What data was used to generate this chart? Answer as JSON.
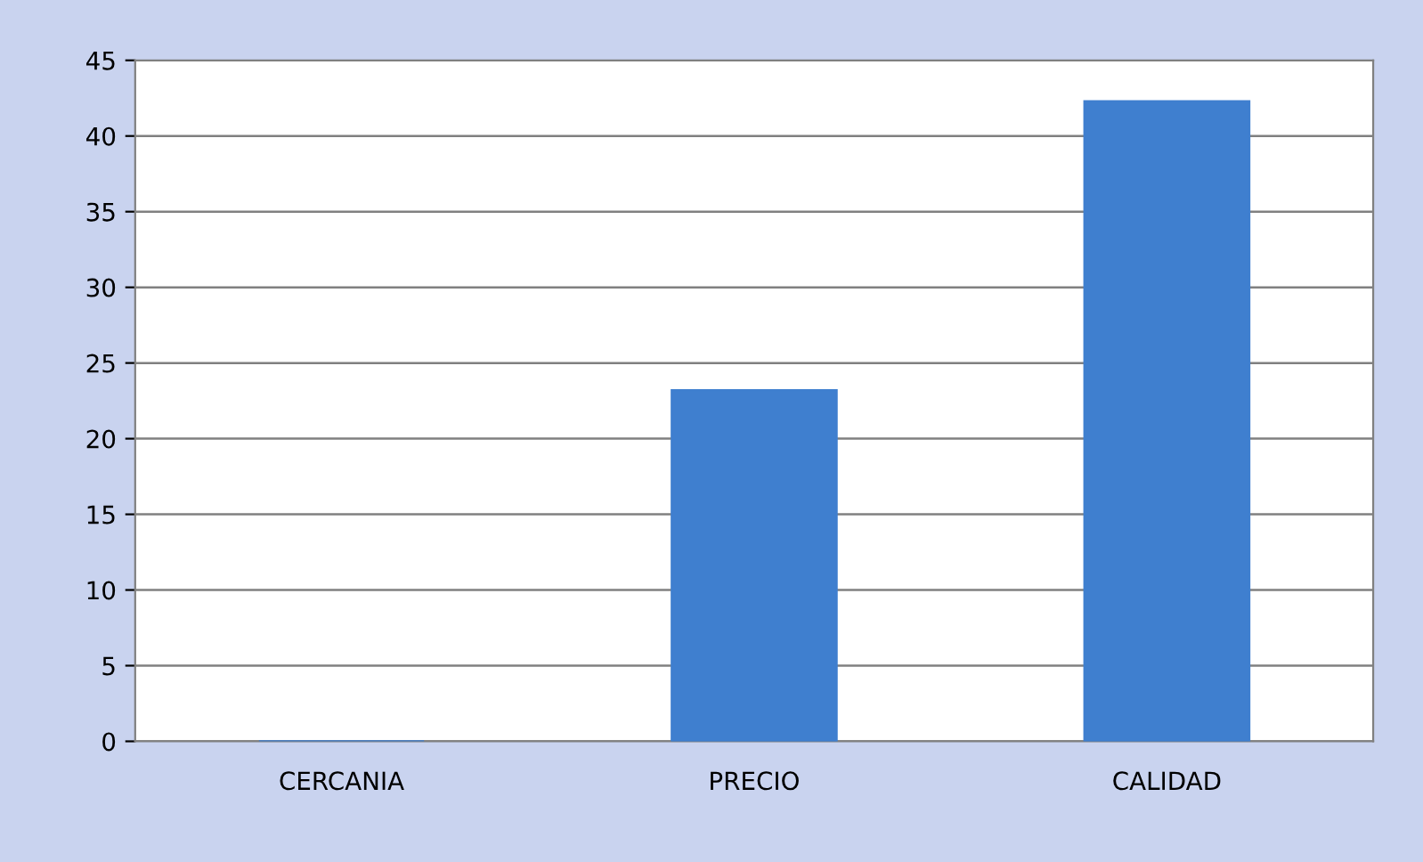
{
  "chart_data": {
    "type": "bar",
    "categories": [
      "CERCANIA",
      "PRECIO",
      "CALIDAD"
    ],
    "values": [
      0,
      23.2,
      42.3
    ],
    "color": "#3f7fcf",
    "ylim": [
      0,
      45
    ],
    "yticks": [
      0,
      5,
      10,
      15,
      20,
      25,
      30,
      35,
      40,
      45
    ],
    "grid": "y"
  }
}
